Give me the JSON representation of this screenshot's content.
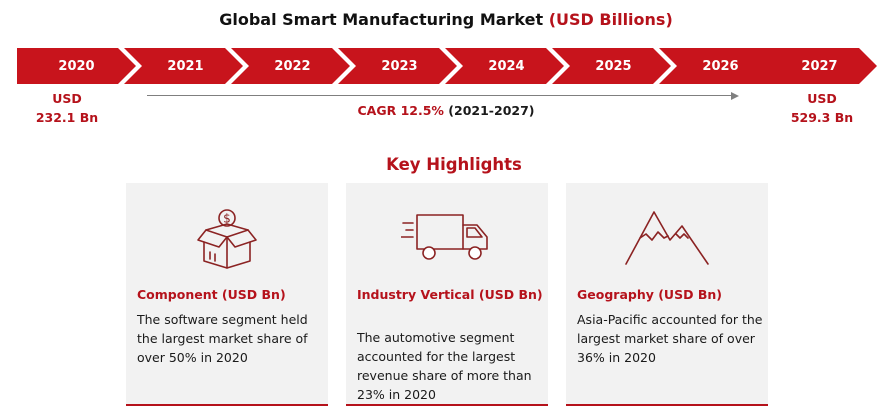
{
  "title": {
    "main": "Global Smart Manufacturing Market ",
    "accent": "(USD Billions)"
  },
  "timeline": {
    "years": [
      "2020",
      "2021",
      "2022",
      "2023",
      "2024",
      "2025",
      "2026",
      "2027"
    ],
    "start_value": {
      "currency": "USD",
      "amount": "232.1 Bn"
    },
    "end_value": {
      "currency": "USD",
      "amount": "529.3 Bn"
    },
    "cagr_label": "CAGR 12.5%",
    "cagr_period": " (2021-2027)"
  },
  "highlights": {
    "heading": "Key Highlights",
    "cards": [
      {
        "icon": "money-box-icon",
        "title": "Component (USD Bn)",
        "text": "The software segment held the largest market share of over 50% in 2020"
      },
      {
        "icon": "delivery-truck-icon",
        "title": "Industry Vertical (USD Bn)",
        "text": "The automotive segment accounted for the largest revenue share of more than 23% in 2020"
      },
      {
        "icon": "mountains-icon",
        "title": "Geography (USD Bn)",
        "text": "Asia-Pacific accounted for the largest market share of over 36% in 2020"
      }
    ]
  },
  "colors": {
    "accent": "#b5121b",
    "chevron": "#c8141c",
    "card_bg": "#f2f2f2",
    "arrow": "#7f7f7f"
  }
}
